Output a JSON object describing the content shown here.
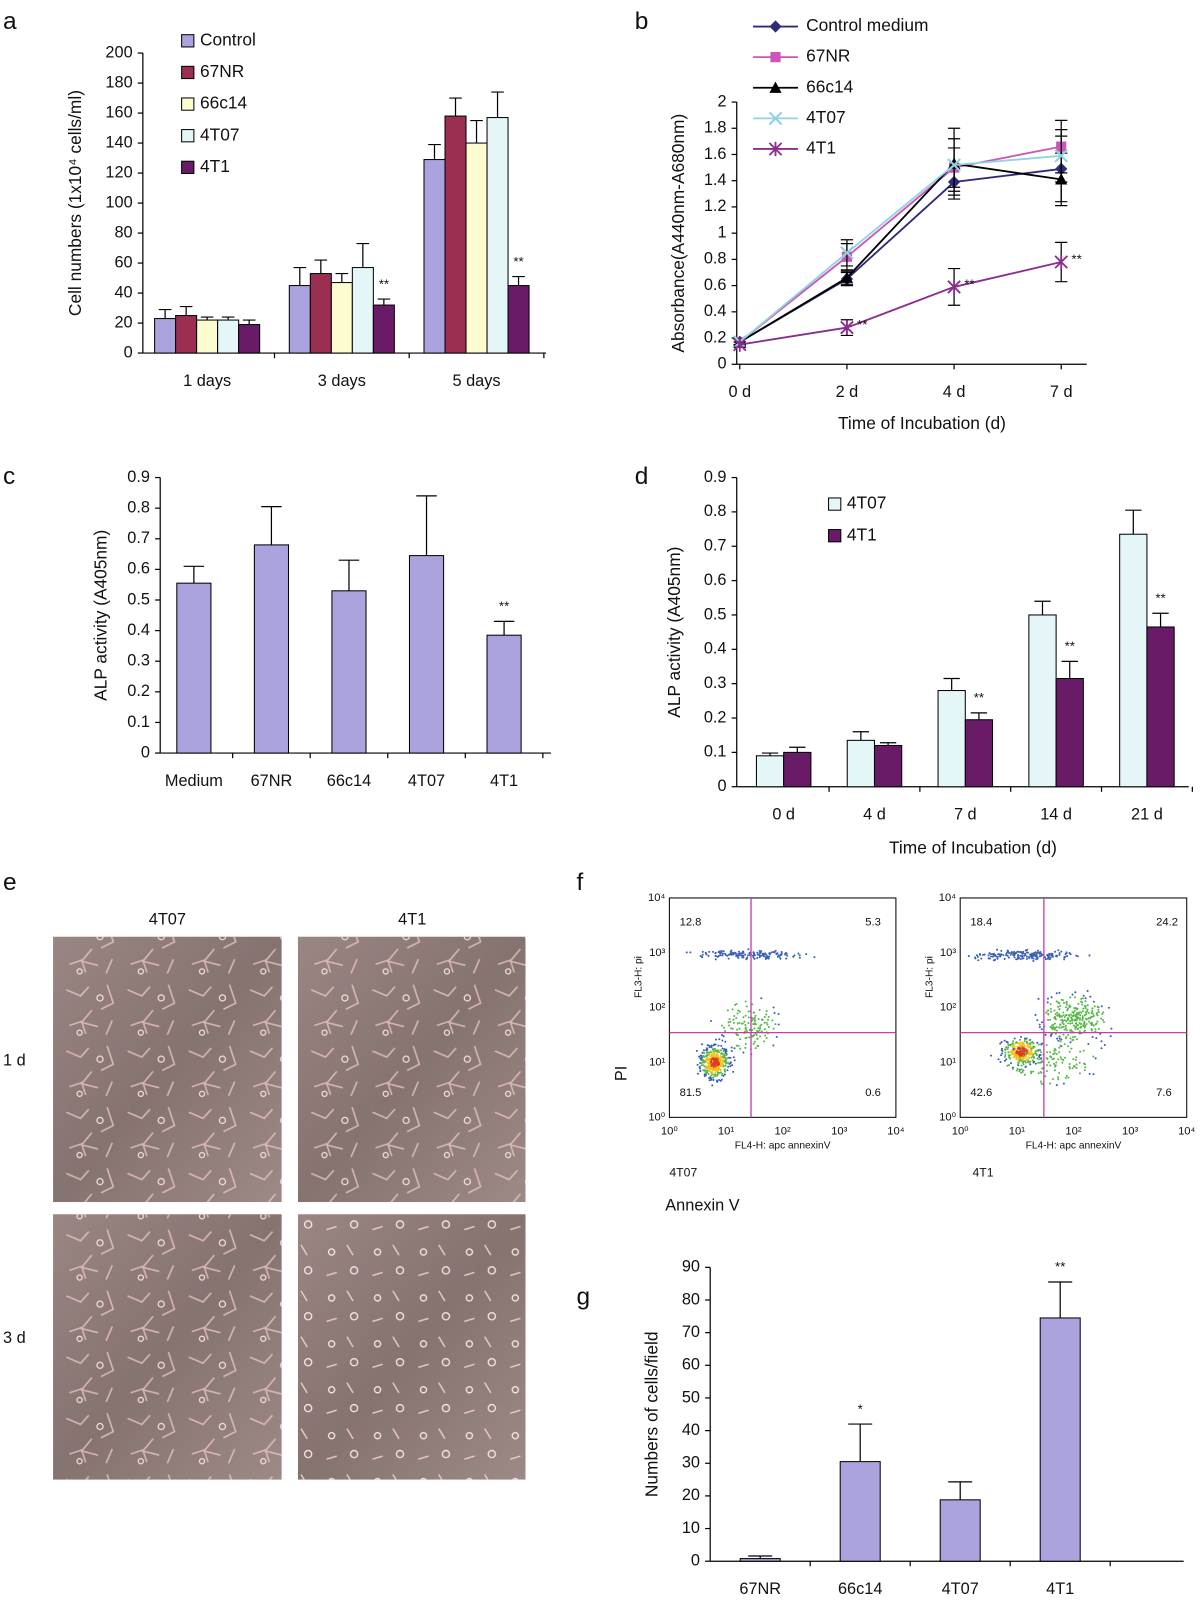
{
  "panel_labels": [
    "a",
    "b",
    "c",
    "d",
    "e",
    "f",
    "g"
  ],
  "chart_data": [
    {
      "type": "bar",
      "y_axis_label": "Cell numbers (1x10⁴ cells/ml)",
      "categories": [
        "1 days",
        "3 days",
        "5 days"
      ],
      "series": [
        {
          "name": "Control",
          "color": "#aaa3de",
          "values": [
            23,
            45,
            129
          ],
          "errors": [
            6,
            12,
            10
          ]
        },
        {
          "name": "67NR",
          "color": "#9b2f52",
          "values": [
            25,
            53,
            158
          ],
          "errors": [
            6,
            9,
            12
          ]
        },
        {
          "name": "66c14",
          "color": "#fdfbd0",
          "values": [
            22,
            47,
            140
          ],
          "errors": [
            2,
            6,
            15
          ]
        },
        {
          "name": "4T07",
          "color": "#e4f6f8",
          "values": [
            22,
            57,
            157
          ],
          "errors": [
            2,
            16,
            17
          ]
        },
        {
          "name": "4T1",
          "color": "#6a1b68",
          "values": [
            19,
            32,
            45
          ],
          "errors": [
            3,
            4,
            6
          ],
          "significance": [
            null,
            "**",
            "**"
          ]
        }
      ],
      "ylim": [
        0,
        200
      ],
      "yticks": [
        0,
        20,
        40,
        60,
        80,
        100,
        120,
        140,
        160,
        180,
        200
      ],
      "legend": "top-left"
    },
    {
      "type": "line",
      "x_axis_label": "Time of Incubation (d)",
      "y_axis_label": "Absorbance(A440nm-A680nm)",
      "categories": [
        "0 d",
        "2 d",
        "4 d",
        "7 d"
      ],
      "series": [
        {
          "name": "Control medium",
          "color": "#2e2a7a",
          "marker": "diamond",
          "values": [
            0.17,
            0.65,
            1.39,
            1.49
          ],
          "errors": [
            0.03,
            0.05,
            0.1,
            0.25
          ]
        },
        {
          "name": "67NR",
          "color": "#cc55bb",
          "marker": "square",
          "values": [
            0.17,
            0.82,
            1.5,
            1.66
          ],
          "errors": [
            0.02,
            0.1,
            0.15,
            0.2
          ]
        },
        {
          "name": "66c14",
          "color": "#000000",
          "marker": "triangle",
          "values": [
            0.17,
            0.66,
            1.53,
            1.41
          ],
          "errors": [
            0.02,
            0.05,
            0.27,
            0.2
          ]
        },
        {
          "name": "4T07",
          "color": "#8fd3e0",
          "marker": "x",
          "values": [
            0.17,
            0.85,
            1.52,
            1.59
          ],
          "errors": [
            0.02,
            0.1,
            0.2,
            0.2
          ]
        },
        {
          "name": "4T1",
          "color": "#8a2d8f",
          "marker": "star",
          "values": [
            0.15,
            0.28,
            0.59,
            0.78
          ],
          "errors": [
            0.02,
            0.06,
            0.14,
            0.15
          ],
          "significance": [
            null,
            "**",
            "**",
            "**"
          ]
        }
      ],
      "ylim": [
        0,
        2
      ],
      "yticks": [
        0,
        0.2,
        0.4,
        0.6,
        0.8,
        1,
        1.2,
        1.4,
        1.6,
        1.8,
        2
      ],
      "legend": "top-left"
    },
    {
      "type": "bar",
      "y_axis_label": "ALP activity (A405nm)",
      "categories": [
        "Medium",
        "67NR",
        "66c14",
        "4T07",
        "4T1"
      ],
      "color": "#aaa3de",
      "values": [
        0.555,
        0.68,
        0.53,
        0.645,
        0.385
      ],
      "errors": [
        0.055,
        0.125,
        0.1,
        0.195,
        0.045
      ],
      "significance": [
        null,
        null,
        null,
        null,
        "**"
      ],
      "ylim": [
        0,
        0.9
      ],
      "yticks": [
        0,
        0.1,
        0.2,
        0.3,
        0.4,
        0.5,
        0.6,
        0.7,
        0.8,
        0.9
      ]
    },
    {
      "type": "bar",
      "x_axis_label": "Time of Incubation (d)",
      "y_axis_label": "ALP activity (A405nm)",
      "categories": [
        "0 d",
        "4 d",
        "7 d",
        "14 d",
        "21 d"
      ],
      "series": [
        {
          "name": "4T07",
          "color": "#e4f6f8",
          "values": [
            0.09,
            0.135,
            0.28,
            0.5,
            0.735
          ],
          "errors": [
            0.008,
            0.025,
            0.035,
            0.04,
            0.07
          ]
        },
        {
          "name": "4T1",
          "color": "#6a1b68",
          "values": [
            0.1,
            0.12,
            0.195,
            0.315,
            0.465
          ],
          "errors": [
            0.015,
            0.008,
            0.02,
            0.05,
            0.04
          ],
          "significance": [
            null,
            null,
            "**",
            "**",
            "**"
          ]
        }
      ],
      "ylim": [
        0,
        0.9
      ],
      "yticks": [
        0,
        0.1,
        0.2,
        0.3,
        0.4,
        0.5,
        0.6,
        0.7,
        0.8,
        0.9
      ],
      "legend": "top-left"
    },
    {
      "type": "bar",
      "y_axis_label": "Numbers of cells/field",
      "categories": [
        "67NR",
        "66c14",
        "4T07",
        "4T1"
      ],
      "color": "#aaa3de",
      "values": [
        0.8,
        30.5,
        18.8,
        74.5
      ],
      "errors": [
        0.8,
        11.5,
        5.5,
        11
      ],
      "significance": [
        null,
        "*",
        null,
        "**"
      ],
      "ylim": [
        0,
        90
      ],
      "yticks": [
        0,
        10,
        20,
        30,
        40,
        50,
        60,
        70,
        80,
        90
      ]
    }
  ],
  "micrographs": {
    "columns": [
      "4T07",
      "4T1"
    ],
    "rows": [
      "1 d",
      "3 d"
    ]
  },
  "flow": {
    "y_axis_label": "PI",
    "x_axis_label": "Annexin V",
    "ticks": [
      "10⁰",
      "10¹",
      "10²",
      "10³",
      "10⁴"
    ],
    "plots": [
      {
        "name": "4T07",
        "x_label": "FL4-H: apc annexinV",
        "y_label": "FL3-H: pi",
        "quadrants": [
          12.8,
          5.3,
          81.5,
          0.6
        ]
      },
      {
        "name": "4T1",
        "x_label": "FL4-H: apc annexinV",
        "y_label": "FL3-H: pi",
        "quadrants": [
          18.4,
          24.2,
          42.6,
          7.6
        ]
      }
    ]
  }
}
